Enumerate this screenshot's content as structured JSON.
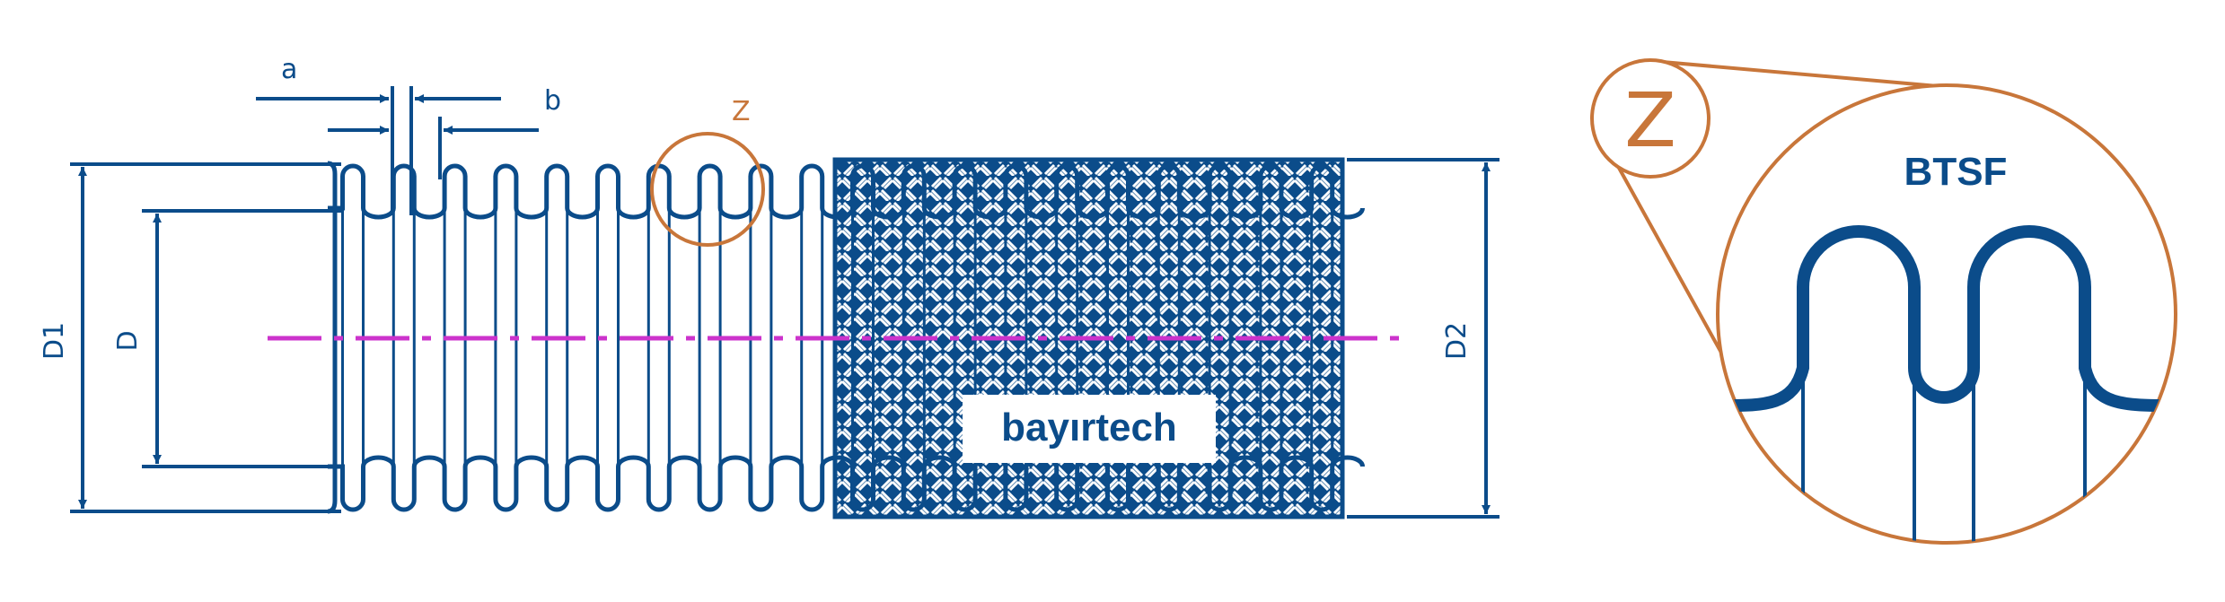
{
  "diagram": {
    "labels": {
      "a": "a",
      "b": "b",
      "z_marker": "Z",
      "d1": "D1",
      "d": "D",
      "d2": "D2",
      "brand": "bayırtech",
      "detail_z": "Z",
      "detail_title": "BTSF"
    },
    "colors": {
      "primary": "#0b4c8a",
      "accent": "#c8763a",
      "centerline": "#cc33cc",
      "background": "#ffffff"
    },
    "corrugation_count": 20,
    "braided_section": "right half of hose covered with braid pattern"
  }
}
